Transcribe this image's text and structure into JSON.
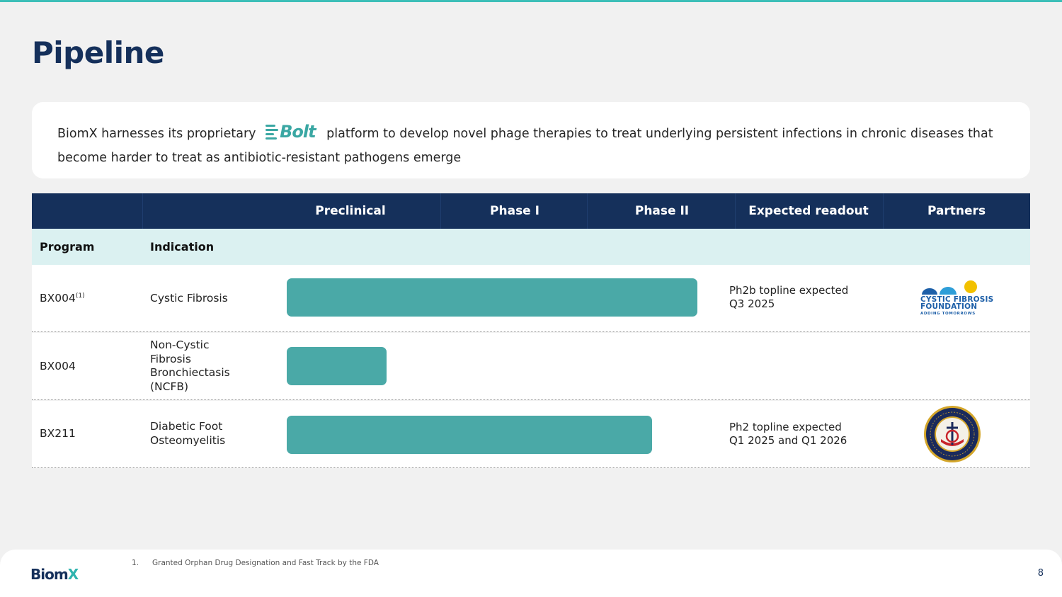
{
  "slide": {
    "title": "Pipeline",
    "page_number": "8"
  },
  "intro": {
    "text_before": "BiomX harnesses its proprietary",
    "platform_logo": "Bolt",
    "text_after": "platform to develop novel phage therapies to treat underlying persistent infections in chronic diseases that become harder to treat as antibiotic-resistant pathogens emerge"
  },
  "table": {
    "header": {
      "preclinical": "Preclinical",
      "phase1": "Phase I",
      "phase2": "Phase II",
      "readout": "Expected readout",
      "partners": "Partners"
    },
    "subheader": {
      "program": "Program",
      "indication": "Indication"
    },
    "rows": [
      {
        "program": "BX004",
        "program_sup": "(1)",
        "indication": "Cystic Fibrosis",
        "progress_stage": "Phase II",
        "readout_line1": "Ph2b topline expected",
        "readout_line2": "Q3 2025",
        "partner_logo": "Cystic Fibrosis Foundation",
        "partner_line1": "CYSTIC FIBROSIS",
        "partner_line2": "FOUNDATION",
        "partner_tagline": "ADDING TOMORROWS"
      },
      {
        "program": "BX004",
        "indication_lines": [
          "Non-Cystic",
          "Fibrosis",
          "Bronchiectasis",
          "(NCFB)"
        ],
        "progress_stage": "Preclinical",
        "readout_line1": "",
        "readout_line2": ""
      },
      {
        "program": "BX211",
        "indication_lines": [
          "Diabetic Foot",
          "Osteomyelitis"
        ],
        "progress_stage": "Phase II",
        "readout_line1": "Ph2 topline expected",
        "readout_line2": "Q1 2025 and Q1 2026",
        "partner_logo": "Naval Medical Research Command seal"
      }
    ]
  },
  "footer": {
    "logo": "BiomX",
    "logo_main": "Biom",
    "logo_accent": "X",
    "footnote_number": "1.",
    "footnote_text": "Granted Orphan Drug Designation and Fast Track by the FDA"
  },
  "colors": {
    "navy": "#15305b",
    "teal_bar": "#4aa9a7",
    "subheader_bg": "#dbf1f1",
    "accent_line": "#3cbfb8"
  }
}
